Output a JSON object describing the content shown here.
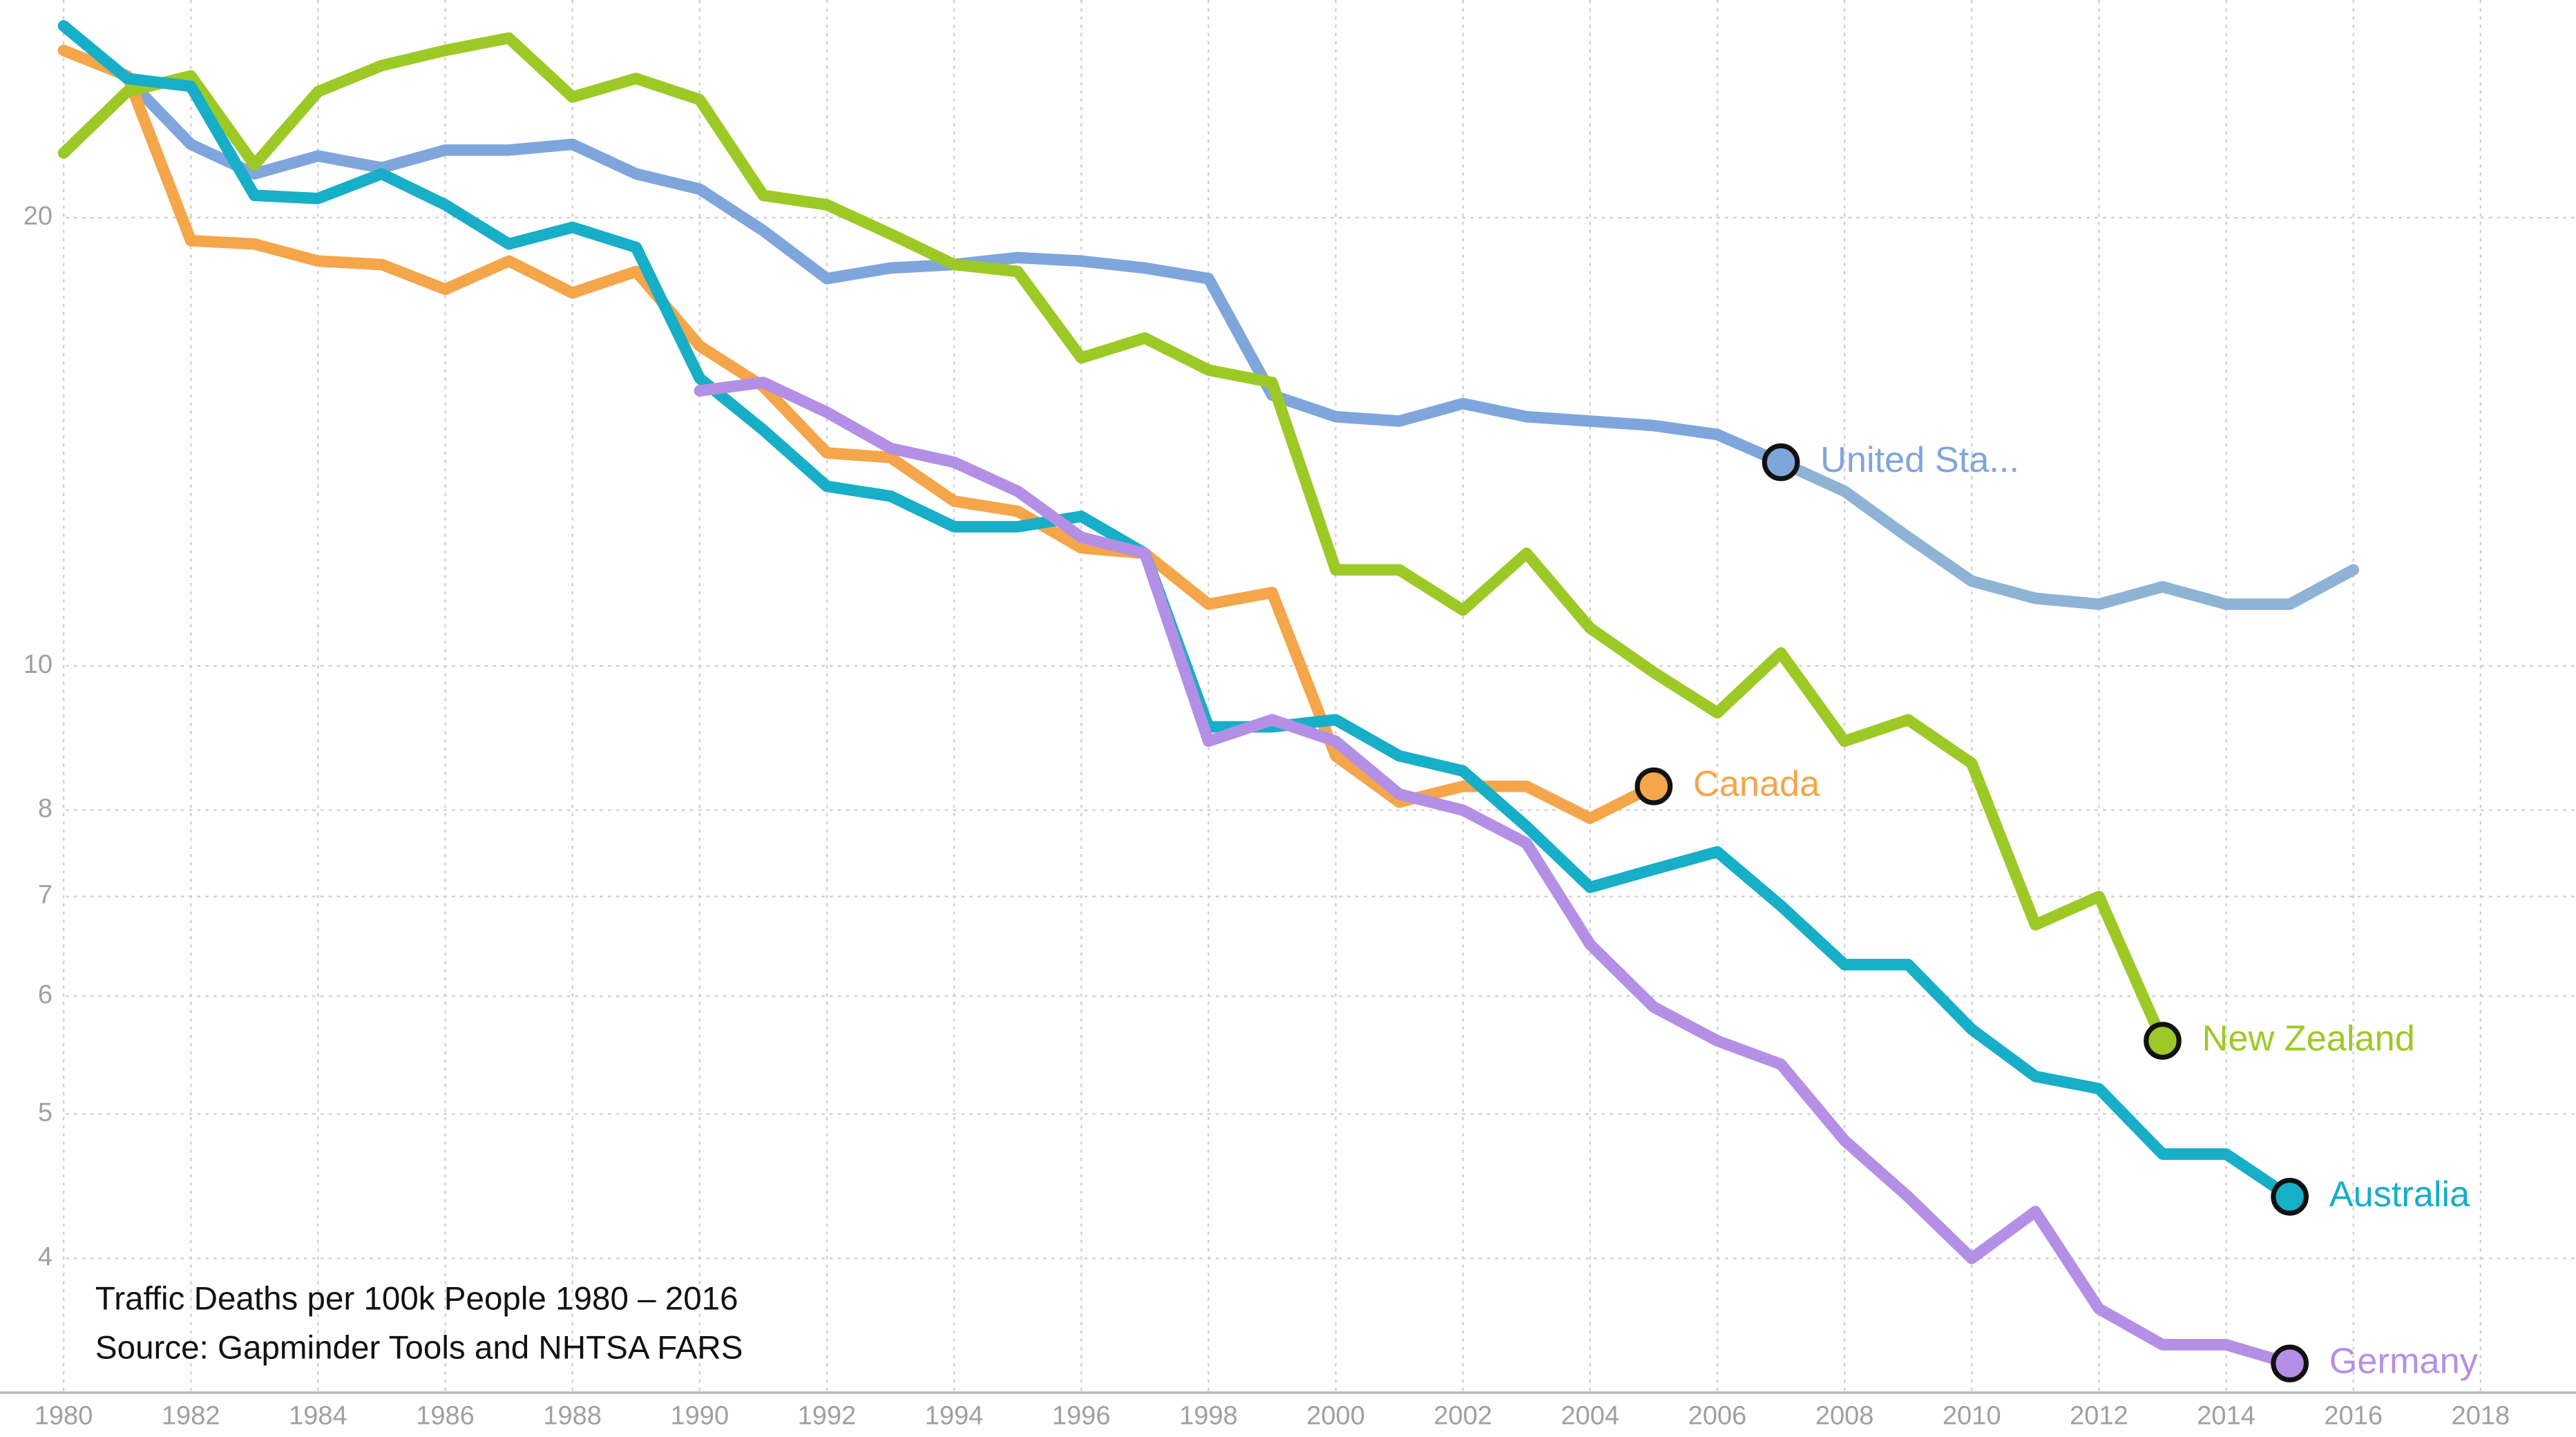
{
  "chart_data": {
    "type": "line",
    "annotation": [
      "Traffic Deaths per 100k People 1980 – 2016",
      "Source: Gapminder Tools and NHTSA FARS"
    ],
    "x": [
      1980,
      1981,
      1982,
      1983,
      1984,
      1985,
      1986,
      1987,
      1988,
      1989,
      1990,
      1991,
      1992,
      1993,
      1994,
      1995,
      1996,
      1997,
      1998,
      1999,
      2000,
      2001,
      2002,
      2003,
      2004,
      2005,
      2006,
      2007,
      2008,
      2009,
      2010,
      2011,
      2012,
      2013,
      2014,
      2015,
      2016
    ],
    "xlim": [
      1979,
      2019.5
    ],
    "xticks": [
      1980,
      1982,
      1984,
      1986,
      1988,
      1990,
      1992,
      1994,
      1996,
      1998,
      2000,
      2002,
      2004,
      2006,
      2008,
      2010,
      2012,
      2014,
      2016,
      2018
    ],
    "ylim": [
      3.25,
      28
    ],
    "yticks": [
      4,
      5,
      6,
      7,
      8,
      10,
      20
    ],
    "log_scale": true,
    "grid": true,
    "series": [
      {
        "name": "United Sta...",
        "color": "#7fa6dc",
        "tail_color": "#8fb3d4",
        "marker_x": 2007,
        "values": [
          26.9,
          24.8,
          22.4,
          21.4,
          22.0,
          21.6,
          22.2,
          22.2,
          22.4,
          21.4,
          20.9,
          19.6,
          18.2,
          18.5,
          18.6,
          18.8,
          18.7,
          18.5,
          18.2,
          15.2,
          14.7,
          14.6,
          15.0,
          14.7,
          14.6,
          14.5,
          14.3,
          13.7,
          13.1,
          12.2,
          11.4,
          11.1,
          11.0,
          11.3,
          11.0,
          11.0,
          11.6
        ]
      },
      {
        "name": "Canada",
        "color": "#f5a54a",
        "values": [
          25.9,
          24.9,
          19.3,
          19.2,
          18.7,
          18.6,
          17.9,
          18.7,
          17.8,
          18.4,
          16.4,
          15.4,
          13.9,
          13.8,
          12.9,
          12.7,
          12.0,
          11.9,
          11.0,
          11.2,
          8.7,
          8.1,
          8.3,
          8.3,
          7.9,
          8.3,
          null,
          null,
          null,
          null,
          null,
          null,
          null,
          null,
          null,
          null,
          null
        ]
      },
      {
        "name": "New Zealand",
        "color": "#9dc926",
        "values": [
          22.1,
          24.3,
          24.9,
          21.7,
          24.3,
          25.3,
          25.9,
          26.4,
          24.1,
          24.8,
          24.0,
          20.7,
          20.4,
          19.5,
          18.6,
          18.4,
          16.1,
          16.6,
          15.8,
          15.5,
          11.6,
          11.6,
          10.9,
          11.9,
          10.6,
          9.9,
          9.3,
          10.2,
          8.9,
          9.2,
          8.6,
          6.7,
          7.0,
          5.6,
          null,
          null,
          null
        ]
      },
      {
        "name": "Australia",
        "color": "#17aec8",
        "values": [
          26.9,
          24.8,
          24.5,
          20.7,
          20.6,
          21.4,
          20.4,
          19.2,
          19.7,
          19.1,
          15.6,
          14.4,
          13.2,
          13.0,
          12.4,
          12.4,
          12.6,
          11.9,
          9.1,
          9.1,
          9.2,
          8.7,
          8.5,
          7.8,
          7.1,
          7.3,
          7.5,
          6.9,
          6.3,
          6.3,
          5.7,
          5.3,
          5.2,
          4.7,
          4.7,
          4.4,
          null
        ]
      },
      {
        "name": "Germany",
        "color": "#b48fe6",
        "values": [
          null,
          null,
          null,
          null,
          null,
          null,
          null,
          null,
          null,
          null,
          15.3,
          15.5,
          14.8,
          14.0,
          13.7,
          13.1,
          12.2,
          11.9,
          8.9,
          9.2,
          8.9,
          8.2,
          8.0,
          7.6,
          6.5,
          5.9,
          5.6,
          5.4,
          4.8,
          4.4,
          4.0,
          4.3,
          3.7,
          3.5,
          3.5,
          3.4,
          null
        ]
      }
    ]
  }
}
